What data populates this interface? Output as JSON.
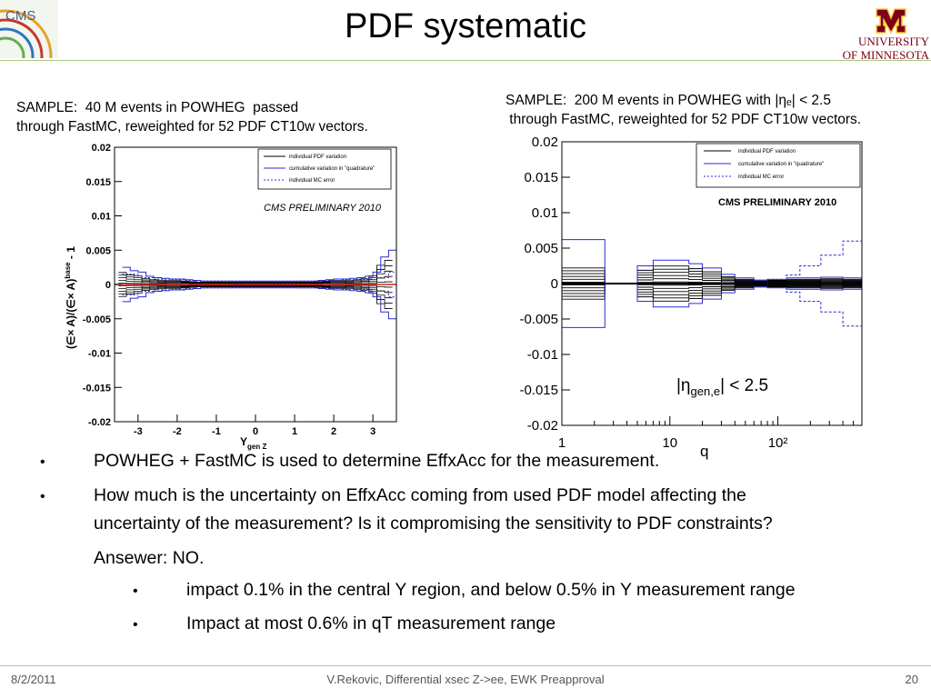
{
  "slide": {
    "title": "PDF systematic",
    "logo_left_text": "CMS",
    "logo_right": {
      "line1": "UNIVERSITY",
      "line2": "OF MINNESOTA"
    },
    "sample_left": "SAMPLE:  40 M events in POWHEG  passed\nthrough FastMC, reweighted for 52 PDF CT10w vectors.",
    "sample_right": "SAMPLE:  200 M events in POWHEG with |ηₑ| < 2.5\n through FastMC, reweighted for 52 PDF CT10w vectors.",
    "bullets": [
      "POWHEG + FastMC is used to determine EffxAcc for the measurement.",
      "How much is the uncertainty on EffxAcc coming from used PDF model affecting the",
      "uncertainty of the measurement? Is it compromising the sensitivity to PDF constraints?",
      "Ansewer:  NO.",
      "impact 0.1% in the  central Y region, and below 0.5% in Y measurement range",
      "Impact at most 0.6% in qT measurement range"
    ],
    "bullet_glyph": "•",
    "footer": {
      "date": "8/2/2011",
      "center": "V.Rekovic, Differential xsec Z->ee, EWK Preapproval",
      "page": "20"
    }
  },
  "chart_data": [
    {
      "type": "line",
      "xlabel": "Y",
      "xlabel_sub": "gen Z",
      "ylabel": "(∈× A)/(∈× A)",
      "ylabel_sup": "base",
      "ylabel_suffix": " - 1",
      "xlim": [
        -3.6,
        3.6
      ],
      "ylim": [
        -0.02,
        0.02
      ],
      "xticks": [
        "-3",
        "-2",
        "-1",
        "0",
        "1",
        "2",
        "3"
      ],
      "yticks": [
        "0.02",
        "0.015",
        "0.01",
        "0.005",
        "0",
        "-0.005",
        "-0.01",
        "-0.015",
        "-0.02"
      ],
      "legend": [
        "individual PDF variation",
        "cumulative variation in \"quadrature\"",
        "individual MC error"
      ],
      "annotation": "CMS PRELIMINARY 2010",
      "series": [
        {
          "name": "cumulative variation in \"quadrature\"",
          "x": [
            -3.4,
            -3.2,
            -3.0,
            -2.8,
            -2.6,
            -2.4,
            -2.2,
            -2.0,
            -1.8,
            -1.6,
            -1.4,
            -1.2,
            -1.0,
            -0.8,
            -0.6,
            -0.4,
            -0.2,
            0.0,
            0.2,
            0.4,
            0.6,
            0.8,
            1.0,
            1.2,
            1.4,
            1.6,
            1.8,
            2.0,
            2.2,
            2.4,
            2.6,
            2.8,
            3.0,
            3.2,
            3.4
          ],
          "values": [
            0.0025,
            0.002,
            0.0018,
            0.0012,
            0.001,
            0.0009,
            0.0008,
            0.0008,
            0.0007,
            0.0006,
            0.0005,
            0.0005,
            0.0005,
            0.0005,
            0.0005,
            0.0005,
            0.0005,
            0.0005,
            0.0005,
            0.0005,
            0.0005,
            0.0005,
            0.0005,
            0.0005,
            0.0005,
            0.0006,
            0.0007,
            0.0008,
            0.0008,
            0.0009,
            0.001,
            0.0012,
            0.0018,
            0.004,
            0.005
          ]
        },
        {
          "name": "individual MC error",
          "x": [
            -3.4,
            -3.0,
            -2.6,
            -2.2,
            -1.8,
            -1.4,
            -1.0,
            -0.6,
            -0.2,
            0.2,
            0.6,
            1.0,
            1.4,
            1.8,
            2.2,
            2.6,
            3.0,
            3.4
          ],
          "values": [
            0.0015,
            0.001,
            0.0008,
            0.0007,
            0.0006,
            0.0005,
            0.0005,
            0.0004,
            0.0004,
            0.0004,
            0.0004,
            0.0005,
            0.0005,
            0.0006,
            0.0007,
            0.0008,
            0.001,
            0.0018
          ]
        }
      ]
    },
    {
      "type": "line",
      "xlabel": "q",
      "xscale": "log",
      "xlim": [
        1,
        600
      ],
      "ylim": [
        -0.02,
        0.02
      ],
      "xticks": [
        "1",
        "10",
        "10²"
      ],
      "yticks": [
        "0.02",
        "0.015",
        "0.01",
        "0.005",
        "0",
        "-0.005",
        "-0.01",
        "-0.015",
        "-0.02"
      ],
      "legend": [
        "individual PDF variation",
        "cumulative variation in \"quadrature\"",
        "individual MC error"
      ],
      "annotation": "CMS PRELIMINARY 2010",
      "label": "|η",
      "label_sub": "gen,e",
      "label_suffix": "| < 2.5",
      "series": [
        {
          "name": "cumulative variation in \"quadrature\"",
          "x": [
            1,
            2.5,
            5,
            7,
            10,
            15,
            20,
            30,
            40,
            60,
            80,
            120,
            160,
            250,
            400,
            600
          ],
          "values": [
            0.0062,
            0.0,
            0.0025,
            0.0033,
            0.0033,
            0.0028,
            0.0022,
            0.0013,
            0.0008,
            0.0005,
            0.0006,
            0.0008,
            0.0008,
            0.0009,
            0.0008,
            0.0008
          ]
        },
        {
          "name": "individual MC error",
          "x": [
            1,
            80,
            120,
            160,
            250,
            400,
            600
          ],
          "values": [
            0.0,
            0.0006,
            0.0012,
            0.0025,
            0.004,
            0.006,
            0.006
          ]
        }
      ]
    }
  ]
}
